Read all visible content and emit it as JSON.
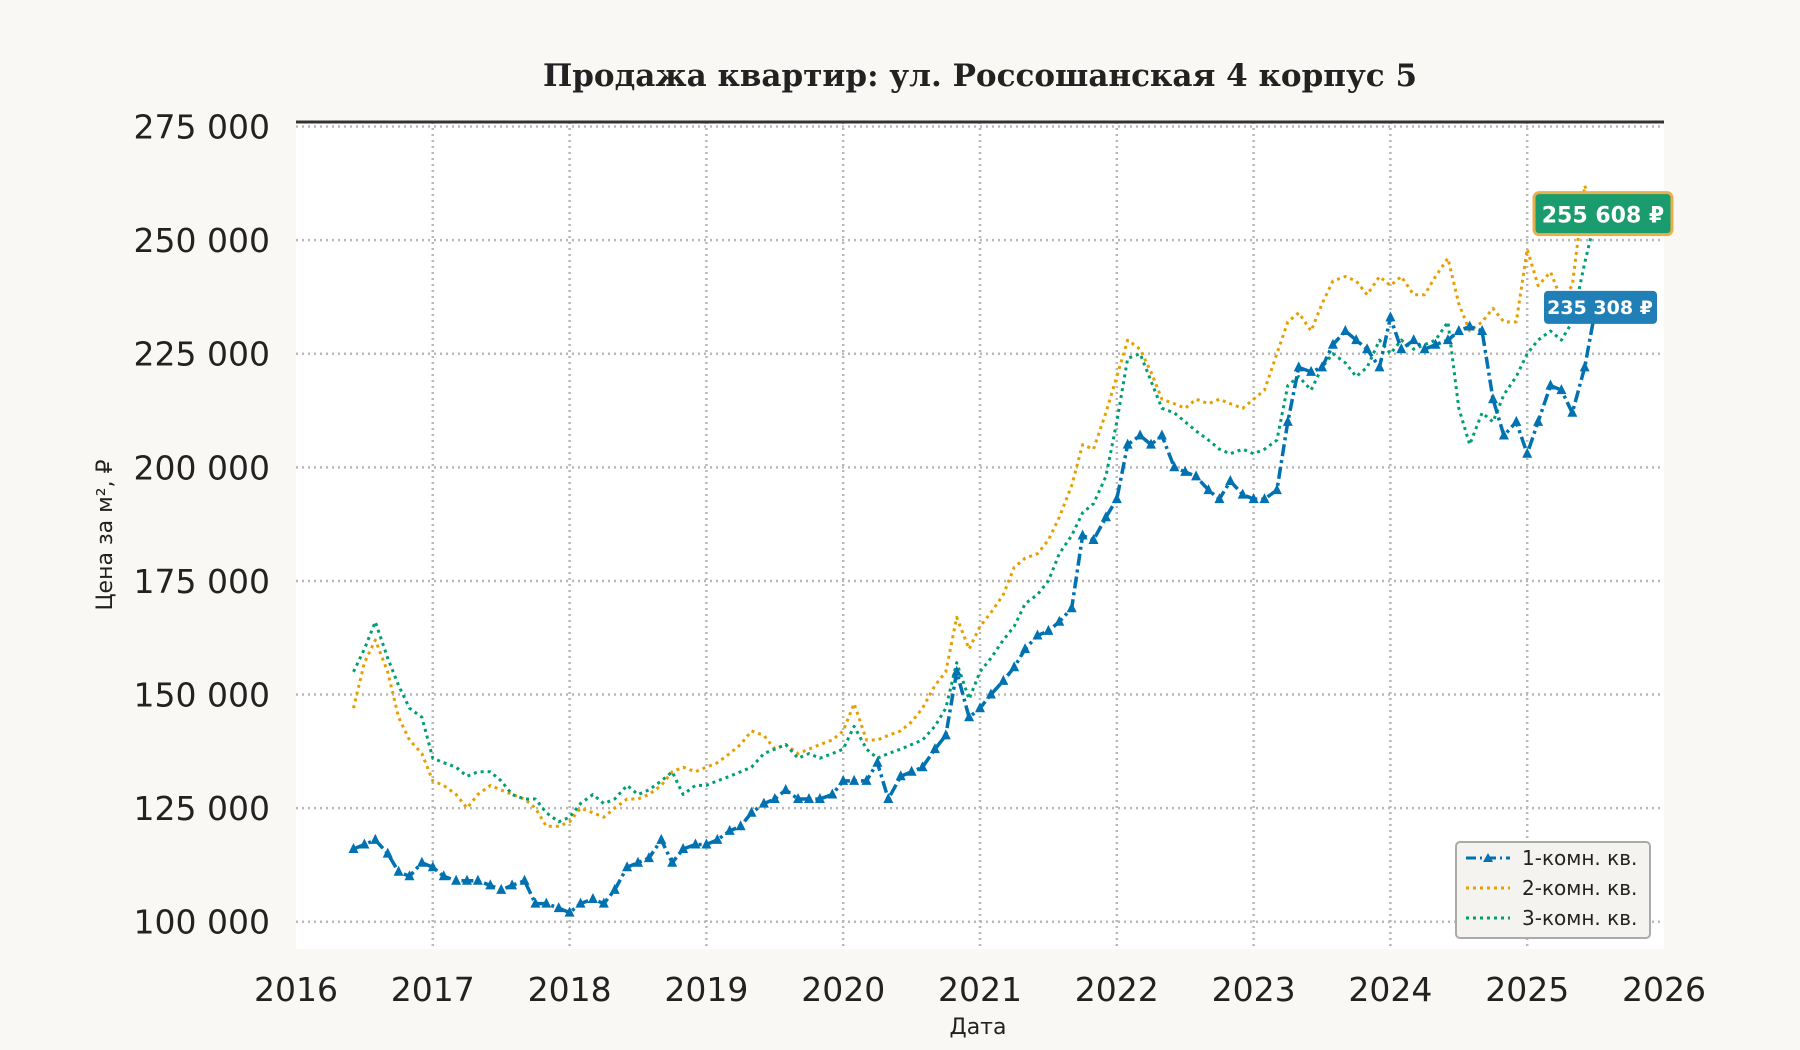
{
  "chart_data": {
    "type": "line",
    "title": "Продажа квартир: ул. Россошанская 4 корпус 5",
    "xlabel": "Дата",
    "ylabel": "Цена за м², ₽",
    "xlim": [
      2016,
      2026
    ],
    "ylim": [
      94000,
      276000
    ],
    "x_ticks": [
      "2016",
      "2017",
      "2018",
      "2019",
      "2020",
      "2021",
      "2022",
      "2023",
      "2024",
      "2025",
      "2026"
    ],
    "y_ticks": [
      "100 000",
      "125 000",
      "150 000",
      "175 000",
      "200 000",
      "225 000",
      "250 000",
      "275 000"
    ],
    "y_tick_values": [
      100000,
      125000,
      150000,
      175000,
      200000,
      225000,
      250000,
      275000
    ],
    "grid": true,
    "legend_position": "bottom-right",
    "series": [
      {
        "name": "1-комн. кв.",
        "color": "#0072b2",
        "style": "dashdot-triangle",
        "x": [
          2016.42,
          2016.5,
          2016.58,
          2016.67,
          2016.75,
          2016.83,
          2016.92,
          2017.0,
          2017.08,
          2017.17,
          2017.25,
          2017.33,
          2017.42,
          2017.5,
          2017.58,
          2017.67,
          2017.75,
          2017.83,
          2017.92,
          2018.0,
          2018.08,
          2018.17,
          2018.25,
          2018.33,
          2018.42,
          2018.5,
          2018.58,
          2018.67,
          2018.75,
          2018.83,
          2018.92,
          2019.0,
          2019.08,
          2019.17,
          2019.25,
          2019.33,
          2019.42,
          2019.5,
          2019.58,
          2019.67,
          2019.75,
          2019.83,
          2019.92,
          2020.0,
          2020.08,
          2020.17,
          2020.25,
          2020.33,
          2020.42,
          2020.5,
          2020.58,
          2020.67,
          2020.75,
          2020.83,
          2020.92,
          2021.0,
          2021.08,
          2021.17,
          2021.25,
          2021.33,
          2021.42,
          2021.5,
          2021.58,
          2021.67,
          2021.75,
          2021.83,
          2021.92,
          2022.0,
          2022.08,
          2022.17,
          2022.25,
          2022.33,
          2022.42,
          2022.5,
          2022.58,
          2022.67,
          2022.75,
          2022.83,
          2022.92,
          2023.0,
          2023.08,
          2023.17,
          2023.25,
          2023.33,
          2023.42,
          2023.5,
          2023.58,
          2023.67,
          2023.75,
          2023.83,
          2023.92,
          2024.0,
          2024.08,
          2024.17,
          2024.25,
          2024.33,
          2024.42,
          2024.5,
          2024.58,
          2024.67,
          2024.75,
          2024.83,
          2024.92,
          2025.0,
          2025.08,
          2025.17,
          2025.25,
          2025.33,
          2025.42,
          2025.5
        ],
        "values": [
          116000,
          117000,
          118000,
          115000,
          111000,
          110000,
          113000,
          112000,
          110000,
          109000,
          109000,
          109000,
          108000,
          107000,
          108000,
          109000,
          104000,
          104000,
          103000,
          102000,
          104000,
          105000,
          104000,
          107000,
          112000,
          113000,
          114000,
          118000,
          113000,
          116000,
          117000,
          117000,
          118000,
          120000,
          121000,
          124000,
          126000,
          127000,
          129000,
          127000,
          127000,
          127000,
          128000,
          131000,
          131000,
          131000,
          135000,
          127000,
          132000,
          133000,
          134000,
          138000,
          141000,
          155000,
          145000,
          147000,
          150000,
          153000,
          156000,
          160000,
          163000,
          164000,
          166000,
          169000,
          185000,
          184000,
          189000,
          193000,
          205000,
          207000,
          205000,
          207000,
          200000,
          199000,
          198000,
          195000,
          193000,
          197000,
          194000,
          193000,
          193000,
          195000,
          210000,
          222000,
          221000,
          222000,
          227000,
          230000,
          228000,
          226000,
          222000,
          233000,
          226000,
          228000,
          226000,
          227000,
          228000,
          230000,
          231000,
          230000,
          215000,
          207000,
          210000,
          203000,
          210000,
          218000,
          217000,
          212000,
          222000,
          235000
        ]
      },
      {
        "name": "2-комн. кв.",
        "color": "#e69f00",
        "style": "dotted",
        "x": [
          2016.42,
          2016.5,
          2016.58,
          2016.67,
          2016.75,
          2016.83,
          2016.92,
          2017.0,
          2017.08,
          2017.17,
          2017.25,
          2017.33,
          2017.42,
          2017.5,
          2017.58,
          2017.67,
          2017.75,
          2017.83,
          2017.92,
          2018.0,
          2018.08,
          2018.17,
          2018.25,
          2018.33,
          2018.42,
          2018.5,
          2018.58,
          2018.67,
          2018.75,
          2018.83,
          2018.92,
          2019.0,
          2019.08,
          2019.17,
          2019.25,
          2019.33,
          2019.42,
          2019.5,
          2019.58,
          2019.67,
          2019.75,
          2019.83,
          2019.92,
          2020.0,
          2020.08,
          2020.17,
          2020.25,
          2020.33,
          2020.42,
          2020.5,
          2020.58,
          2020.67,
          2020.75,
          2020.83,
          2020.92,
          2021.0,
          2021.08,
          2021.17,
          2021.25,
          2021.33,
          2021.42,
          2021.5,
          2021.58,
          2021.67,
          2021.75,
          2021.83,
          2021.92,
          2022.0,
          2022.08,
          2022.17,
          2022.25,
          2022.33,
          2022.42,
          2022.5,
          2022.58,
          2022.67,
          2022.75,
          2022.83,
          2022.92,
          2023.0,
          2023.08,
          2023.17,
          2023.25,
          2023.33,
          2023.42,
          2023.5,
          2023.58,
          2023.67,
          2023.75,
          2023.83,
          2023.92,
          2024.0,
          2024.08,
          2024.17,
          2024.25,
          2024.33,
          2024.42,
          2024.5,
          2024.58,
          2024.67,
          2024.75,
          2024.83,
          2024.92,
          2025.0,
          2025.08,
          2025.17,
          2025.25,
          2025.33,
          2025.42,
          2025.5
        ],
        "values": [
          147000,
          157000,
          162000,
          155000,
          145000,
          140000,
          137000,
          131000,
          130000,
          128000,
          125000,
          128000,
          130000,
          129000,
          128000,
          127000,
          125000,
          121000,
          121000,
          122000,
          125000,
          124000,
          123000,
          125000,
          127000,
          127000,
          128000,
          130000,
          133000,
          134000,
          133000,
          134000,
          135000,
          137000,
          139000,
          142000,
          141000,
          138000,
          139000,
          137000,
          138000,
          139000,
          140000,
          142000,
          148000,
          140000,
          140000,
          141000,
          142000,
          144000,
          147000,
          152000,
          155000,
          167000,
          160000,
          165000,
          168000,
          172000,
          178000,
          180000,
          181000,
          184000,
          189000,
          196000,
          205000,
          204000,
          212000,
          220000,
          228000,
          226000,
          221000,
          215000,
          214000,
          213000,
          215000,
          214000,
          215000,
          214000,
          213000,
          215000,
          217000,
          225000,
          232000,
          234000,
          230000,
          236000,
          241000,
          242000,
          241000,
          238000,
          242000,
          240000,
          242000,
          238000,
          238000,
          242000,
          246000,
          236000,
          230000,
          232000,
          235000,
          232000,
          232000,
          248000,
          240000,
          243000,
          237000,
          240000,
          262000,
          255608
        ]
      },
      {
        "name": "3-комн. кв.",
        "color": "#009e73",
        "style": "dotted",
        "x": [
          2016.42,
          2016.5,
          2016.58,
          2016.67,
          2016.75,
          2016.83,
          2016.92,
          2017.0,
          2017.08,
          2017.17,
          2017.25,
          2017.33,
          2017.42,
          2017.5,
          2017.58,
          2017.67,
          2017.75,
          2017.83,
          2017.92,
          2018.0,
          2018.08,
          2018.17,
          2018.25,
          2018.33,
          2018.42,
          2018.5,
          2018.58,
          2018.67,
          2018.75,
          2018.83,
          2018.92,
          2019.0,
          2019.08,
          2019.17,
          2019.25,
          2019.33,
          2019.42,
          2019.5,
          2019.58,
          2019.67,
          2019.75,
          2019.83,
          2019.92,
          2020.0,
          2020.08,
          2020.17,
          2020.25,
          2020.33,
          2020.42,
          2020.5,
          2020.58,
          2020.67,
          2020.75,
          2020.83,
          2020.92,
          2021.0,
          2021.08,
          2021.17,
          2021.25,
          2021.33,
          2021.42,
          2021.5,
          2021.58,
          2021.67,
          2021.75,
          2021.83,
          2021.92,
          2022.0,
          2022.08,
          2022.17,
          2022.25,
          2022.33,
          2022.42,
          2022.5,
          2022.58,
          2022.67,
          2022.75,
          2022.83,
          2022.92,
          2023.0,
          2023.08,
          2023.17,
          2023.25,
          2023.33,
          2023.42,
          2023.5,
          2023.58,
          2023.67,
          2023.75,
          2023.83,
          2023.92,
          2024.0,
          2024.08,
          2024.17,
          2024.25,
          2024.33,
          2024.42,
          2024.5,
          2024.58,
          2024.67,
          2024.75,
          2024.83,
          2024.92,
          2025.0,
          2025.08,
          2025.17,
          2025.25,
          2025.33,
          2025.42,
          2025.5
        ],
        "values": [
          155000,
          160000,
          166000,
          158000,
          152000,
          147000,
          145000,
          136000,
          135000,
          134000,
          132000,
          133000,
          133000,
          131000,
          128000,
          127000,
          127000,
          124000,
          122000,
          123000,
          126000,
          128000,
          126000,
          127000,
          130000,
          128000,
          129000,
          131000,
          133000,
          128000,
          130000,
          130000,
          131000,
          132000,
          133000,
          134000,
          137000,
          138000,
          139000,
          136000,
          137000,
          136000,
          137000,
          138000,
          143000,
          138000,
          136000,
          137000,
          138000,
          139000,
          140000,
          143000,
          147000,
          157000,
          149000,
          155000,
          158000,
          162000,
          165000,
          170000,
          172000,
          175000,
          181000,
          185000,
          190000,
          192000,
          198000,
          210000,
          224000,
          225000,
          219000,
          213000,
          212000,
          210000,
          208000,
          206000,
          204000,
          203000,
          204000,
          203000,
          204000,
          206000,
          218000,
          220000,
          217000,
          222000,
          225000,
          223000,
          220000,
          222000,
          228000,
          225000,
          228000,
          226000,
          227000,
          228000,
          232000,
          213000,
          205000,
          212000,
          210000,
          216000,
          220000,
          225000,
          228000,
          230000,
          228000,
          232000,
          245000,
          255000
        ]
      }
    ],
    "badges": [
      {
        "text": "255 608 ₽",
        "color": "#1a9c6e",
        "value": 255608
      },
      {
        "text": "235 308 ₽",
        "color": "#1f7fb6",
        "value": 235308
      }
    ]
  }
}
